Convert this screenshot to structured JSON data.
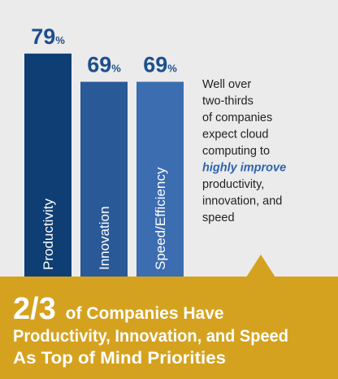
{
  "chart_data": {
    "type": "bar",
    "categories": [
      "Productivity",
      "Innovation",
      "Speed/Efficiency"
    ],
    "values": [
      79,
      69,
      69
    ],
    "value_labels": [
      "79%",
      "69%",
      "69%"
    ],
    "colors": [
      "#0f3e74",
      "#2a5997",
      "#3b6db0"
    ],
    "annotation": [
      "Well over",
      "two-thirds",
      "of companies",
      "expect cloud",
      "computing to",
      "highly improve",
      "productivity,",
      "innovation, and",
      "speed"
    ],
    "annotation_emphasis": [
      5
    ],
    "title": {
      "highlight": "2/3",
      "lines": [
        "of Companies Have",
        "Productivity, Innovation, and Speed",
        "As Top of Mind Priorities"
      ]
    }
  }
}
